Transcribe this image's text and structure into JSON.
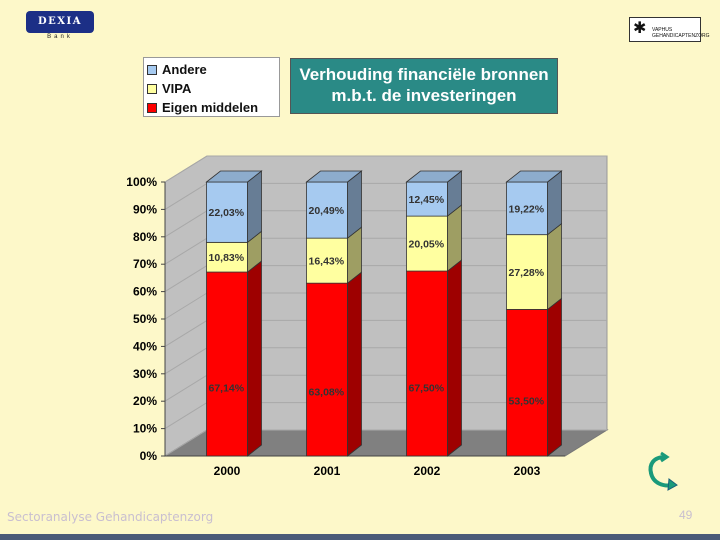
{
  "logos": {
    "dexia_text": "DEXIA",
    "dexia_sub": "Bank",
    "vaphus_text": "VAPHUS\nGEHANDICAPTENZORG"
  },
  "chart_data": {
    "type": "bar",
    "stacked": true,
    "title": "Verhouding  financiële bronnen\nm.b.t.  de investeringen",
    "categories": [
      "2000",
      "2001",
      "2002",
      "2003"
    ],
    "series": [
      {
        "name": "Eigen middelen",
        "values": [
          67.14,
          63.08,
          67.5,
          53.5
        ],
        "labels": [
          "67,14%",
          "63,08%",
          "67,50%",
          "53,50%"
        ],
        "color": "#ff0000"
      },
      {
        "name": "VIPA",
        "values": [
          10.83,
          16.43,
          20.05,
          27.28
        ],
        "labels": [
          "10,83%",
          "16,43%",
          "20,05%",
          "27,28%"
        ],
        "color": "#ffffa0"
      },
      {
        "name": "Andere",
        "values": [
          22.03,
          20.49,
          12.45,
          19.22
        ],
        "labels": [
          "22,03%",
          "20,49%",
          "12,45%",
          "19,22%"
        ],
        "color": "#a6caf0"
      }
    ],
    "legend_order": [
      "Andere",
      "VIPA",
      "Eigen middelen"
    ],
    "legend_position": "top-left",
    "yticks": [
      "0%",
      "10%",
      "20%",
      "30%",
      "40%",
      "50%",
      "60%",
      "70%",
      "80%",
      "90%",
      "100%"
    ],
    "ylim": [
      0,
      100
    ],
    "three_d": true
  },
  "footer": {
    "text": "Sectoranalyse Gehandicaptenzorg",
    "page_number": "49"
  },
  "colors": {
    "background": "#fdf8c9",
    "title_box": "#2a8a86",
    "wall": "#c0c0c0",
    "floor": "#808080"
  },
  "icons": {
    "nav": "cycle-arrow-icon"
  }
}
